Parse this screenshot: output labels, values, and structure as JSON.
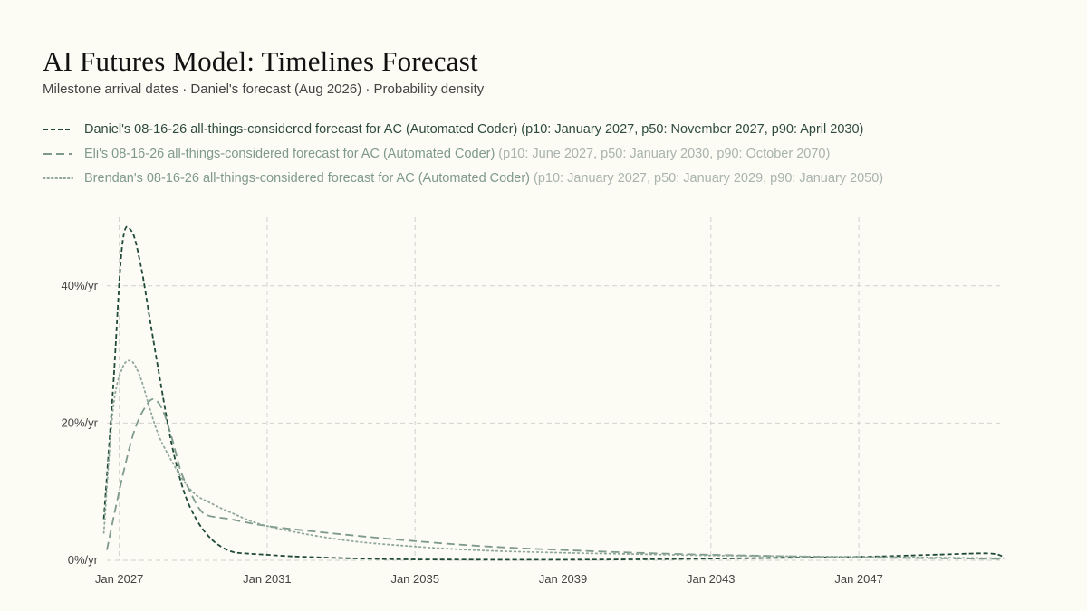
{
  "header": {
    "title": "AI Futures Model: Timelines Forecast",
    "subtitle": "Milestone arrival dates · Daniel's forecast (Aug 2026) · Probability density"
  },
  "legend": {
    "items": [
      {
        "name": "Daniel's 08-16-26 all-things-considered forecast for AC (Automated Coder)",
        "stats": "(p10: January 2027, p50: November 2027, p90: April 2030)"
      },
      {
        "name": "Eli's 08-16-26 all-things-considered forecast for AC (Automated Coder)",
        "stats": "(p10: June 2027, p50: January 2030, p90: October 2070)"
      },
      {
        "name": "Brendan's 08-16-26 all-things-considered forecast for AC (Automated Coder)",
        "stats": "(p10: January 2027, p50: January 2029, p90: January 2050)"
      }
    ]
  },
  "chart_data": {
    "type": "line",
    "title": "AI Futures Model: Timelines Forecast",
    "subtitle": "Milestone arrival dates · Daniel's forecast (Aug 2026) · Probability density",
    "xlabel": "",
    "ylabel": "",
    "xlim": [
      "2026-09",
      "2050-12"
    ],
    "ylim": [
      0,
      50
    ],
    "x_ticks": [
      "Jan 2027",
      "Jan 2031",
      "Jan 2035",
      "Jan 2039",
      "Jan 2043",
      "Jan 2047"
    ],
    "y_ticks": [
      "0%/yr",
      "20%/yr",
      "40%/yr"
    ],
    "grid": true,
    "legend_position": "top-left",
    "series": [
      {
        "name": "Daniel's 08-16-26 all-things-considered forecast for AC (Automated Coder)",
        "color": "#1f4a36",
        "dash": "dashed",
        "points": [
          [
            "2026-08",
            6
          ],
          [
            "2026-11",
            25
          ],
          [
            "2027-02",
            46
          ],
          [
            "2027-05",
            48
          ],
          [
            "2027-08",
            43
          ],
          [
            "2027-11",
            35
          ],
          [
            "2028-02",
            27
          ],
          [
            "2028-06",
            17
          ],
          [
            "2028-10",
            10
          ],
          [
            "2029-02",
            6
          ],
          [
            "2029-06",
            3.5
          ],
          [
            "2029-10",
            2
          ],
          [
            "2030-02",
            1.2
          ],
          [
            "2030-06",
            1
          ],
          [
            "2031-01",
            0.8
          ],
          [
            "2032-01",
            0.5
          ],
          [
            "2034-01",
            0.2
          ],
          [
            "2036-01",
            0.1
          ],
          [
            "2040-01",
            0.1
          ],
          [
            "2044-01",
            0.3
          ],
          [
            "2047-01",
            0.5
          ],
          [
            "2049-01",
            0.8
          ],
          [
            "2050-07",
            1
          ],
          [
            "2050-12",
            0.5
          ]
        ]
      },
      {
        "name": "Eli's 08-16-26 all-things-considered forecast for AC (Automated Coder)",
        "color": "#7e9a8c",
        "dash": "long-dashed",
        "points": [
          [
            "2026-09",
            1.5
          ],
          [
            "2026-12",
            8
          ],
          [
            "2027-03",
            14
          ],
          [
            "2027-06",
            19
          ],
          [
            "2027-09",
            22
          ],
          [
            "2027-12",
            23.5
          ],
          [
            "2028-03",
            22
          ],
          [
            "2028-06",
            18
          ],
          [
            "2028-09",
            13
          ],
          [
            "2028-12",
            10
          ],
          [
            "2029-03",
            7.5
          ],
          [
            "2029-06",
            6.5
          ],
          [
            "2030-01",
            6
          ],
          [
            "2031-01",
            5
          ],
          [
            "2033-01",
            3.8
          ],
          [
            "2035-01",
            2.8
          ],
          [
            "2037-01",
            2
          ],
          [
            "2039-01",
            1.5
          ],
          [
            "2041-01",
            1.1
          ],
          [
            "2043-01",
            0.8
          ],
          [
            "2045-01",
            0.6
          ],
          [
            "2047-01",
            0.4
          ],
          [
            "2049-01",
            0.3
          ],
          [
            "2050-12",
            0.2
          ]
        ]
      },
      {
        "name": "Brendan's 08-16-26 all-things-considered forecast for AC (Automated Coder)",
        "color": "#8fa89a",
        "dash": "dotted",
        "points": [
          [
            "2026-08",
            4
          ],
          [
            "2026-11",
            22
          ],
          [
            "2027-02",
            28
          ],
          [
            "2027-05",
            29
          ],
          [
            "2027-08",
            26.5
          ],
          [
            "2027-11",
            22
          ],
          [
            "2028-02",
            18
          ],
          [
            "2028-06",
            14.5
          ],
          [
            "2028-10",
            11.5
          ],
          [
            "2029-02",
            9.5
          ],
          [
            "2029-06",
            8.5
          ],
          [
            "2030-01",
            7
          ],
          [
            "2031-01",
            5
          ],
          [
            "2033-01",
            3
          ],
          [
            "2035-01",
            2
          ],
          [
            "2037-01",
            1.4
          ],
          [
            "2039-01",
            1.1
          ],
          [
            "2041-01",
            0.9
          ],
          [
            "2043-01",
            0.7
          ],
          [
            "2045-01",
            0.6
          ],
          [
            "2047-01",
            0.5
          ],
          [
            "2049-01",
            0.4
          ],
          [
            "2050-12",
            0.3
          ]
        ]
      }
    ]
  }
}
